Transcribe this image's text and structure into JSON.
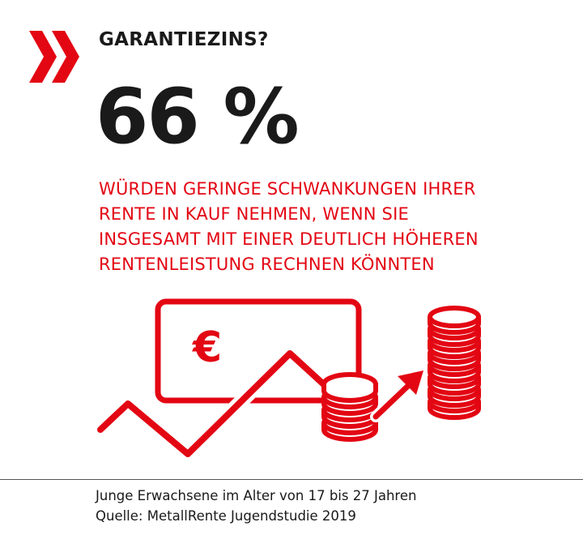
{
  "headline": "GARANTIEZINS?",
  "stat": "66 %",
  "description_lines": [
    "Würden geringe Schwankungen ihrer",
    "Rente in Kauf nehmen, wenn sie",
    "insgesamt mit einer deutlich höheren",
    "Rentenleistung rechnen könnten"
  ],
  "illustration": {
    "currency_symbol": "€",
    "icons": [
      "banknote-icon",
      "coin-stack-icon",
      "trend-arrow-icon"
    ]
  },
  "footer": {
    "line1": "Junge Erwachsene im Alter von 17 bis 27 Jahren",
    "line2": "Quelle: MetallRente Jugendstudie 2019"
  },
  "colors": {
    "accent": "#e30613",
    "text": "#1a1a1a",
    "divider": "#555555",
    "background": "#ffffff"
  }
}
